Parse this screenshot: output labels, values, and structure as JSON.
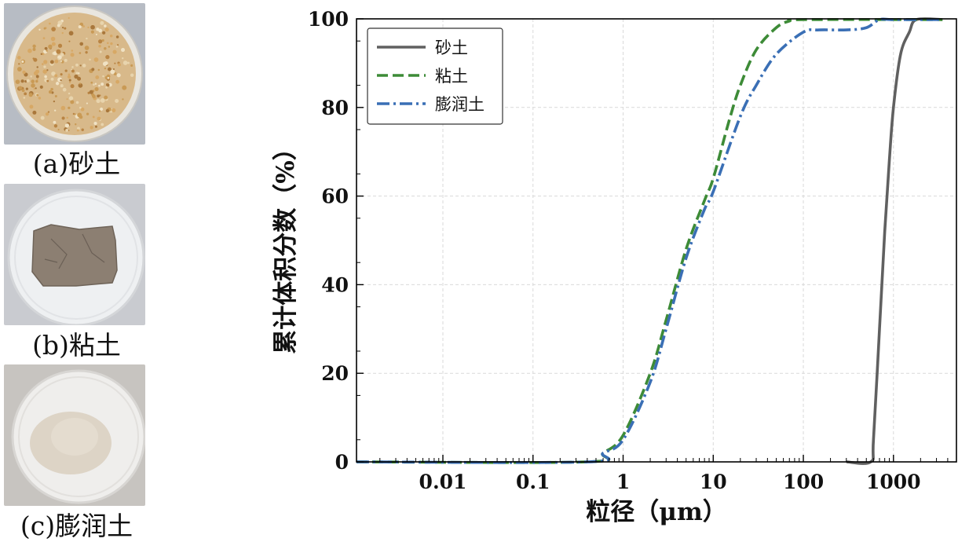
{
  "photos": [
    {
      "caption": "(a)砂土"
    },
    {
      "caption": "(b)粘土"
    },
    {
      "caption": "(c)膨润土"
    }
  ],
  "chart_data": {
    "type": "line",
    "xscale": "log",
    "xlabel": "粒径（μm）",
    "ylabel": "累计体积分数（%）",
    "xlim": [
      0.0011,
      5000
    ],
    "ylim": [
      0,
      100
    ],
    "xticks": [
      0.01,
      0.1,
      1,
      10,
      100,
      1000
    ],
    "xtick_labels": [
      "0.01",
      "0.1",
      "1",
      "10",
      "100",
      "1000"
    ],
    "yticks": [
      0,
      20,
      40,
      60,
      80,
      100
    ],
    "ytick_labels": [
      "0",
      "20",
      "40",
      "60",
      "80",
      "100"
    ],
    "grid": true,
    "legend_position": "top-left",
    "series": [
      {
        "name": "砂土",
        "color": "#606060",
        "dash": "solid",
        "x": [
          300,
          560,
          600,
          700,
          800,
          900,
          1000,
          1200,
          1500,
          1800,
          3500
        ],
        "y": [
          0,
          0,
          5,
          30,
          52,
          68,
          80,
          92,
          97,
          100,
          100
        ]
      },
      {
        "name": "粘土",
        "color": "#3d8b37",
        "dash": "dashed",
        "x": [
          0.0011,
          0.4,
          0.6,
          1,
          2,
          3,
          5,
          8,
          10,
          15,
          20,
          30,
          50,
          70,
          100,
          3500
        ],
        "y": [
          0,
          0,
          2,
          6,
          20,
          32,
          48,
          59,
          64,
          77,
          85,
          93,
          98,
          99.5,
          100,
          100
        ]
      },
      {
        "name": "膨润土",
        "color": "#3a6fb5",
        "dash": "dashdot",
        "x": [
          0.0011,
          0.4,
          0.6,
          1,
          2,
          3,
          5,
          8,
          10,
          20,
          30,
          50,
          100,
          150,
          300,
          500,
          700,
          1000,
          3500
        ],
        "y": [
          0,
          0,
          2,
          5,
          18,
          30,
          46,
          57,
          61,
          78,
          85,
          92,
          97,
          97.5,
          97.5,
          98,
          100,
          100,
          100
        ]
      }
    ]
  }
}
